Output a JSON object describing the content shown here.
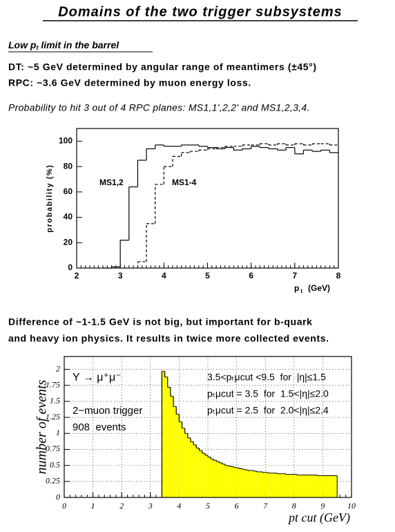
{
  "title": "Domains of the two trigger subsystems",
  "heading": [
    "Low p",
    "t",
    " limit in the barrel"
  ],
  "lines": [
    "DT: ~5 GeV determined by angular range of meantimers (±45°)",
    "RPC: ~3.6 GeV determined by muon energy loss."
  ],
  "caption": "Probability to hit 3 out of 4 RPC planes: MS1,1',2,2' and MS1,2,3,4.",
  "paragraph": [
    "Difference of ~1-1.5 GeV is not big, but important for b-quark",
    "and heavy ion physics. It results in twice more collected events."
  ],
  "chart_data": [
    {
      "type": "histogram",
      "ylabel": "probability (%)",
      "xlabel": [
        "p",
        "t",
        "(GeV)"
      ],
      "bins": [
        2.6,
        2.8,
        3.0,
        3.2,
        3.4,
        3.6,
        3.8,
        4.0,
        4.2,
        4.4,
        4.6,
        4.8,
        5.0,
        5.2,
        5.4,
        5.6,
        5.8,
        6.0,
        6.2,
        6.4,
        6.6,
        6.8,
        7.0,
        7.2,
        7.4,
        7.6,
        7.8,
        8.0
      ],
      "series": [
        {
          "name": "MS1,2",
          "color": "#000000",
          "style": "solid",
          "values": [
            0,
            1,
            22,
            64,
            85,
            94,
            97,
            96,
            96,
            97,
            97,
            96,
            95,
            94,
            95,
            93,
            94,
            96,
            95,
            94,
            93,
            95,
            90,
            93,
            92,
            93,
            91
          ]
        },
        {
          "name": "MS1-4",
          "color": "#000000",
          "style": "dashed",
          "values": [
            null,
            null,
            null,
            null,
            5,
            35,
            66,
            80,
            88,
            91,
            92,
            93,
            94,
            95,
            96,
            96,
            97,
            97,
            98,
            97,
            98,
            97,
            98,
            97,
            98,
            98,
            97
          ]
        }
      ],
      "xlim": [
        2,
        8
      ],
      "xticks": [
        2,
        3,
        4,
        5,
        6,
        7,
        8
      ],
      "ylim": [
        0,
        110
      ],
      "yticks": [
        0,
        20,
        40,
        60,
        80,
        100
      ],
      "grid": false
    },
    {
      "type": "histogram",
      "ylabel": "number of events",
      "xlabel": "pt cut (GeV)",
      "annotations": [
        "Υ → μ⁺μ⁻",
        "2−muon trigger",
        "908  events",
        "3.5<pₜμcut <9.5  for  |η|≤1.5",
        "pₜμcut = 3.5  for  1.5<|η|≤2.0",
        "pₜμcut = 2.5  for  2.0<|η|≤2.4"
      ],
      "bins": [
        3.4,
        3.5,
        3.6,
        3.7,
        3.8,
        3.9,
        4.0,
        4.1,
        4.2,
        4.3,
        4.4,
        4.5,
        4.6,
        4.7,
        4.8,
        4.9,
        5.0,
        5.1,
        5.2,
        5.3,
        5.4,
        5.5,
        5.6,
        5.7,
        5.8,
        5.9,
        6.0,
        6.1,
        6.2,
        6.3,
        6.4,
        6.5,
        6.6,
        6.7,
        6.8,
        6.9,
        7.0,
        7.1,
        7.2,
        7.3,
        7.4,
        7.5,
        7.6,
        7.7,
        7.8,
        7.9,
        8.0,
        8.1,
        8.2,
        8.3,
        8.4,
        8.5,
        8.6,
        8.7,
        8.8,
        8.9,
        9.0,
        9.1,
        9.2,
        9.3,
        9.4,
        9.5
      ],
      "values": [
        1.97,
        1.88,
        1.72,
        1.58,
        1.42,
        1.3,
        1.18,
        1.08,
        1.0,
        0.93,
        0.87,
        0.82,
        0.77,
        0.73,
        0.69,
        0.66,
        0.63,
        0.6,
        0.58,
        0.56,
        0.54,
        0.52,
        0.5,
        0.49,
        0.48,
        0.47,
        0.46,
        0.45,
        0.44,
        0.43,
        0.42,
        0.42,
        0.41,
        0.4,
        0.4,
        0.39,
        0.39,
        0.38,
        0.38,
        0.38,
        0.37,
        0.37,
        0.37,
        0.36,
        0.36,
        0.36,
        0.36,
        0.35,
        0.35,
        0.35,
        0.35,
        0.35,
        0.35,
        0.35,
        0.34,
        0.34,
        0.34,
        0.34,
        0.34,
        0.34,
        0.34
      ],
      "color": "#ffff00",
      "xlim": [
        0,
        10
      ],
      "xticks": [
        0,
        1,
        2,
        3,
        4,
        5,
        6,
        7,
        8,
        9,
        10
      ],
      "ylim": [
        0,
        2.2
      ],
      "yticks": [
        0,
        0.25,
        0.5,
        0.75,
        1,
        1.25,
        1.5,
        1.75,
        2
      ],
      "grid": true
    }
  ]
}
